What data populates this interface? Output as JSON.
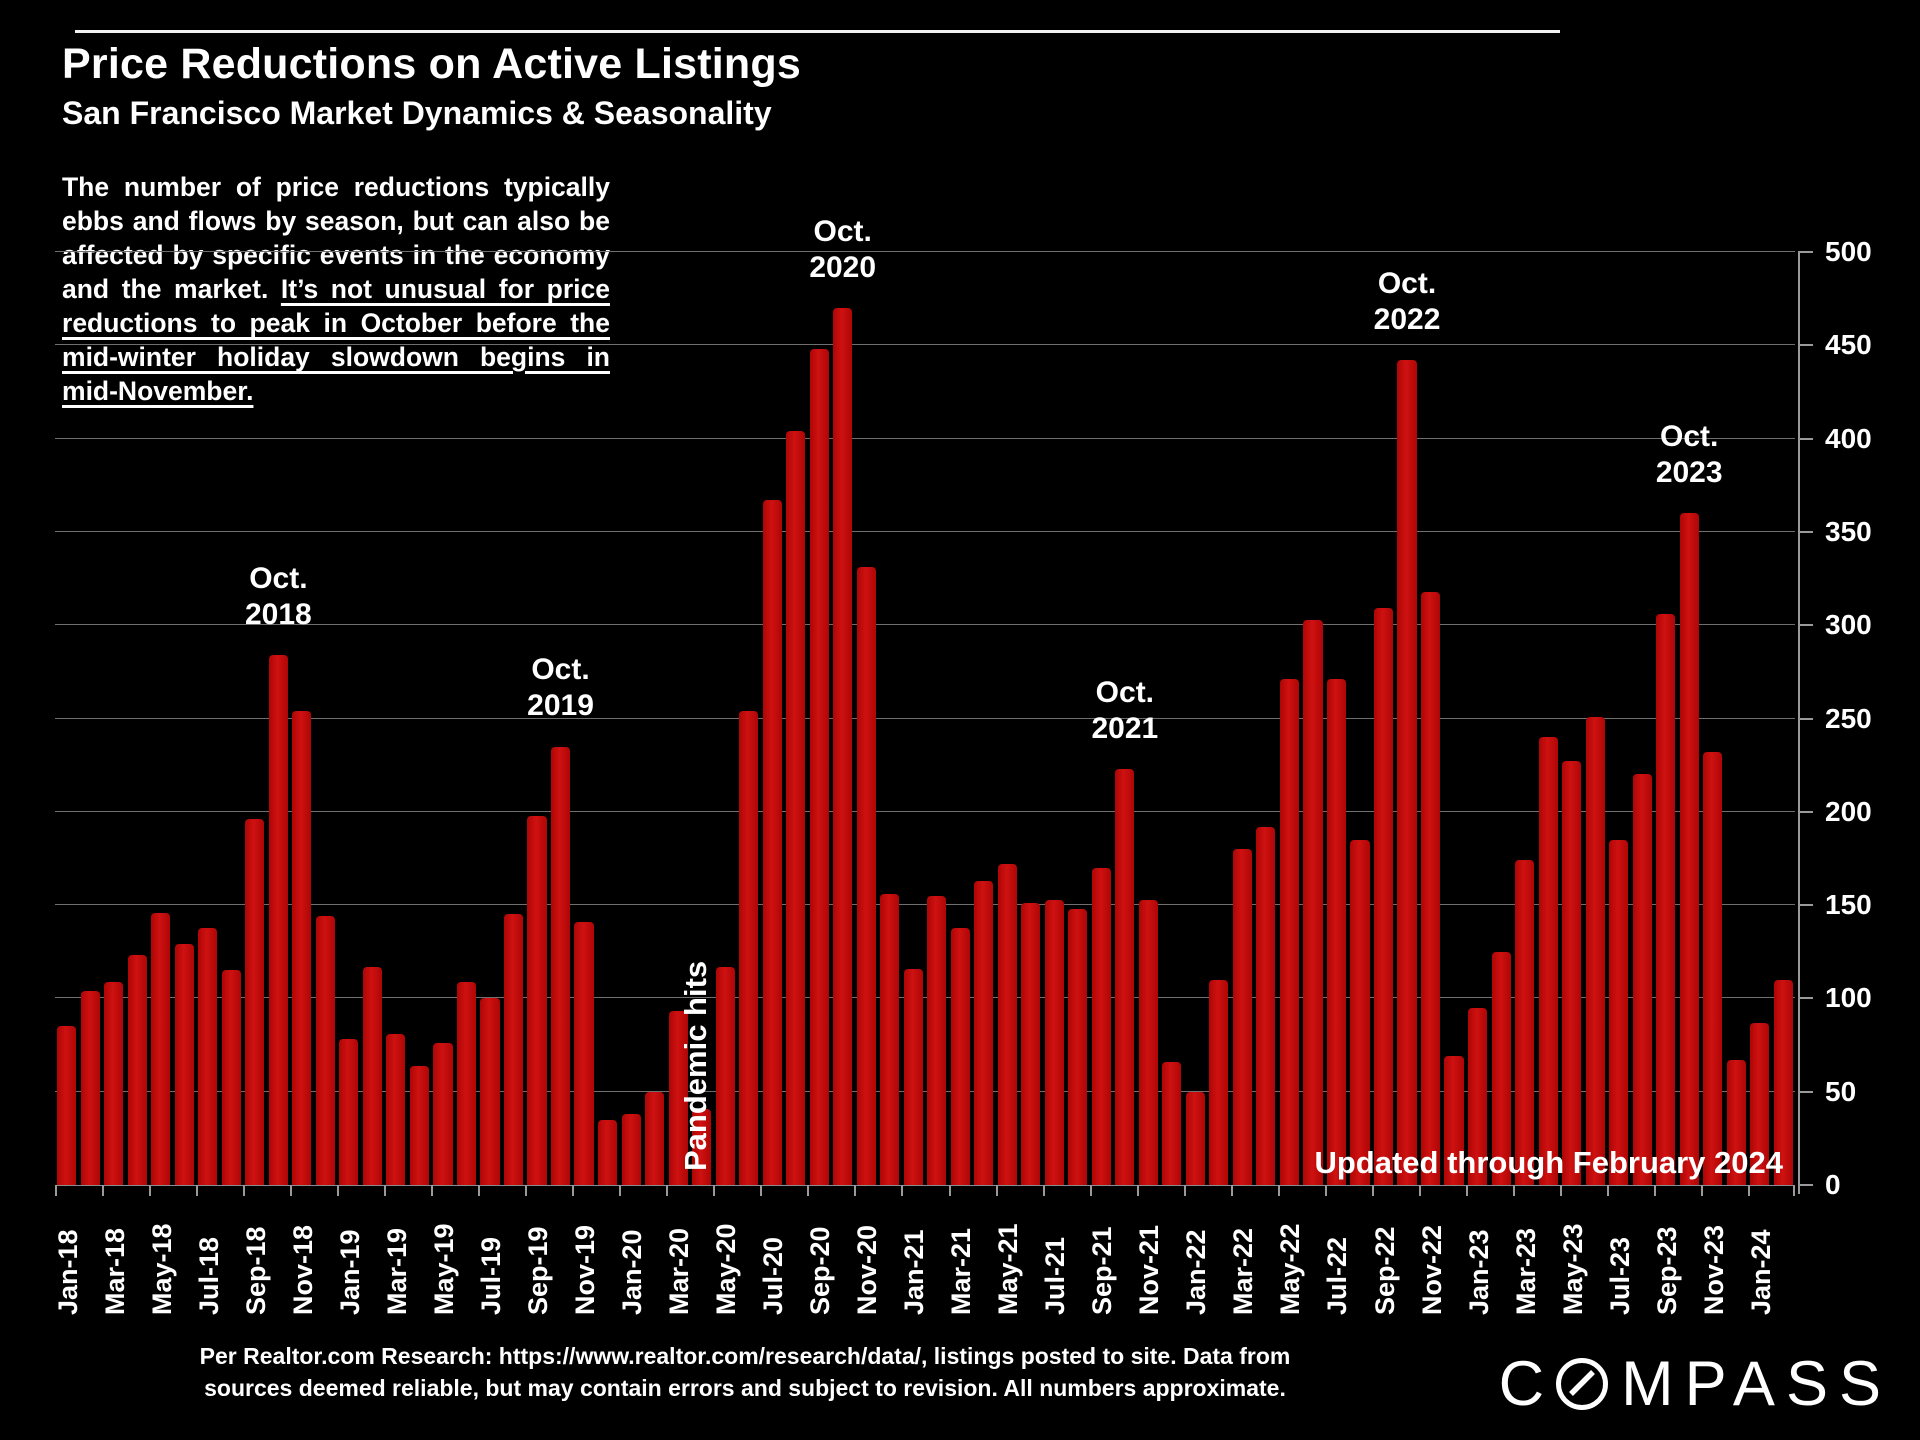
{
  "header": {
    "title": "Price Reductions on Active Listings",
    "subtitle": "San Francisco Market Dynamics & Seasonality"
  },
  "description": {
    "normal": "The number of price reductions typically ebbs and flows by season, but can also be affected by specific events in the economy and the market. ",
    "underlined": "It’s not unusual for price reductions to peak in October before the mid-winter holiday slowdown begins in mid-November."
  },
  "chart_data": {
    "type": "bar",
    "title": "Price Reductions on Active Listings",
    "xlabel": "",
    "ylabel": "",
    "ylim": [
      0,
      500
    ],
    "ytick_step": 50,
    "yticks": [
      "0",
      "50",
      "100",
      "150",
      "200",
      "250",
      "300",
      "350",
      "400",
      "450",
      "500"
    ],
    "grid": true,
    "bar_color": "#c40909",
    "gridline_color": "#6f6f6f",
    "x": [
      "Jan-18",
      "Feb-18",
      "Mar-18",
      "Apr-18",
      "May-18",
      "Jun-18",
      "Jul-18",
      "Aug-18",
      "Sep-18",
      "Oct-18",
      "Nov-18",
      "Dec-18",
      "Jan-19",
      "Feb-19",
      "Mar-19",
      "Apr-19",
      "May-19",
      "Jun-19",
      "Jul-19",
      "Aug-19",
      "Sep-19",
      "Oct-19",
      "Nov-19",
      "Dec-19",
      "Jan-20",
      "Feb-20",
      "Mar-20",
      "Apr-20",
      "May-20",
      "Jun-20",
      "Jul-20",
      "Aug-20",
      "Sep-20",
      "Oct-20",
      "Nov-20",
      "Dec-20",
      "Jan-21",
      "Feb-21",
      "Mar-21",
      "Apr-21",
      "May-21",
      "Jun-21",
      "Jul-21",
      "Aug-21",
      "Sep-21",
      "Oct-21",
      "Nov-21",
      "Dec-21",
      "Jan-22",
      "Feb-22",
      "Mar-22",
      "Apr-22",
      "May-22",
      "Jun-22",
      "Jul-22",
      "Aug-22",
      "Sep-22",
      "Oct-22",
      "Nov-22",
      "Dec-22",
      "Jan-23",
      "Feb-23",
      "Mar-23",
      "Apr-23",
      "May-23",
      "Jun-23",
      "Jul-23",
      "Aug-23",
      "Sep-23",
      "Oct-23",
      "Nov-23",
      "Dec-23",
      "Jan-24",
      "Feb-24"
    ],
    "values": [
      85,
      104,
      109,
      123,
      146,
      129,
      138,
      115,
      196,
      284,
      254,
      144,
      78,
      117,
      81,
      64,
      76,
      109,
      100,
      145,
      198,
      235,
      141,
      35,
      38,
      50,
      93,
      41,
      117,
      254,
      367,
      404,
      448,
      470,
      331,
      156,
      116,
      155,
      138,
      163,
      172,
      151,
      153,
      148,
      170,
      223,
      153,
      66,
      50,
      110,
      180,
      192,
      271,
      303,
      271,
      185,
      309,
      442,
      318,
      69,
      95,
      125,
      174,
      240,
      227,
      251,
      185,
      220,
      306,
      360,
      232,
      67,
      87,
      110
    ],
    "xtick_labels": [
      "Jan-18",
      "Mar-18",
      "May-18",
      "Jul-18",
      "Sep-18",
      "Nov-18",
      "Jan-19",
      "Mar-19",
      "May-19",
      "Jul-19",
      "Sep-19",
      "Nov-19",
      "Jan-20",
      "Mar-20",
      "May-20",
      "Jul-20",
      "Sep-20",
      "Nov-20",
      "Jan-21",
      "Mar-21",
      "May-21",
      "Jul-21",
      "Sep-21",
      "Nov-21",
      "Jan-22",
      "Mar-22",
      "May-22",
      "Jul-22",
      "Sep-22",
      "Nov-22",
      "Jan-23",
      "Mar-23",
      "May-23",
      "Jul-23",
      "Sep-23",
      "Nov-23",
      "Jan-24"
    ],
    "annotations": [
      {
        "month": "Oct-18",
        "lines": [
          "Oct.",
          "2018"
        ]
      },
      {
        "month": "Oct-19",
        "lines": [
          "Oct.",
          "2019"
        ]
      },
      {
        "month": "Oct-20",
        "lines": [
          "Oct.",
          "2020"
        ]
      },
      {
        "month": "Oct-21",
        "lines": [
          "Oct.",
          "2021"
        ]
      },
      {
        "month": "Oct-22",
        "lines": [
          "Oct.",
          "2022"
        ]
      },
      {
        "month": "Oct-23",
        "lines": [
          "Oct.",
          "2023"
        ]
      }
    ],
    "vertical_annotation": {
      "text": "Pandemic hits",
      "month": "Apr-20"
    },
    "updated_note": "Updated through February 2024",
    "legend": null
  },
  "footer": {
    "line1": "Per Realtor.com Research:  https://www.realtor.com/research/data/, listings posted to site. Data from",
    "line2": "sources deemed reliable, but may contain errors and subject to revision. All numbers approximate."
  },
  "logo": {
    "name": "COMPASS",
    "prefix": "C",
    "suffix": "MPASS",
    "o_icon": "slashed-circle-icon"
  }
}
